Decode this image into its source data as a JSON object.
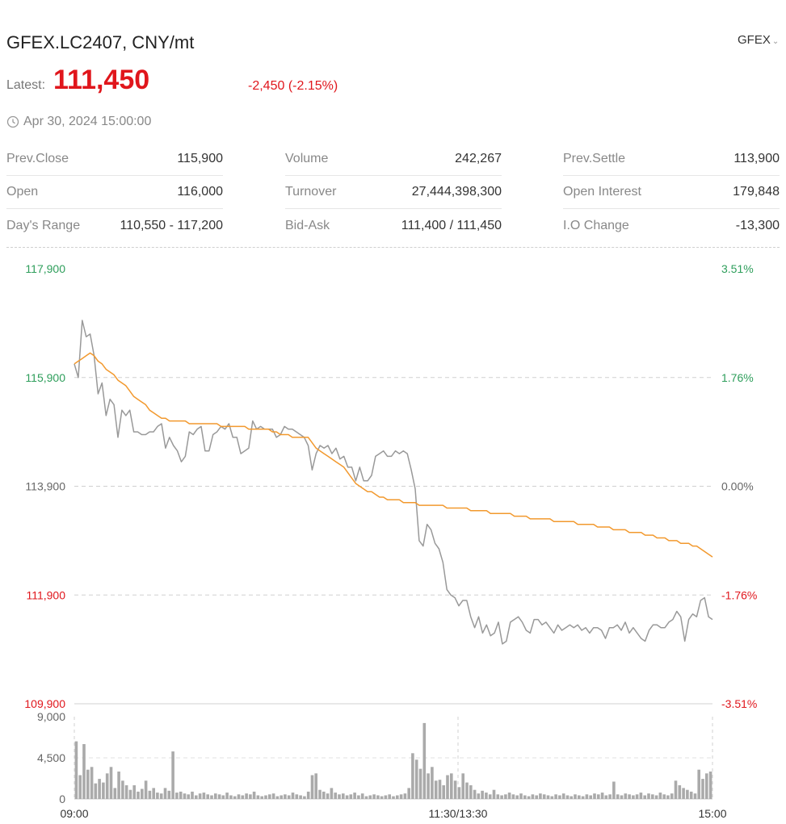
{
  "header": {
    "title": "GFEX.LC2407, CNY/mt",
    "exchange": "GFEX",
    "latest_label": "Latest:",
    "latest_value": "111,450",
    "change": "-2,450 (-2.15%)",
    "timestamp": "Apr 30, 2024 15:00:00"
  },
  "stats": [
    [
      {
        "label": "Prev.Close",
        "value": "115,900"
      },
      {
        "label": "Open",
        "value": "116,000"
      },
      {
        "label": "Day's Range",
        "value": "110,550 - 117,200"
      }
    ],
    [
      {
        "label": "Volume",
        "value": "242,267"
      },
      {
        "label": "Turnover",
        "value": "27,444,398,300"
      },
      {
        "label": "Bid-Ask",
        "value": "111,400 / 111,450"
      }
    ],
    [
      {
        "label": "Prev.Settle",
        "value": "113,900"
      },
      {
        "label": "Open Interest",
        "value": "179,848"
      },
      {
        "label": "I.O Change",
        "value": "-13,300"
      }
    ]
  ],
  "colors": {
    "up": "#2e9e5b",
    "down": "#e0161c",
    "price_line": "#999999",
    "avg_line": "#f2992e",
    "volume_bar": "#aaaaaa"
  },
  "chart_data": {
    "type": "line",
    "price_axis": {
      "ylim": [
        109900,
        117900
      ],
      "ticks": [
        "117,900",
        "115,900",
        "113,900",
        "111,900",
        "109,900"
      ],
      "tick_values": [
        117900,
        115900,
        113900,
        111900,
        109900
      ]
    },
    "percent_axis": {
      "ticks": [
        "3.51%",
        "1.76%",
        "0.00%",
        "-1.76%",
        "-3.51%"
      ]
    },
    "x_ticks": [
      "09:00",
      "11:30/13:30",
      "15:00"
    ],
    "series": [
      {
        "values": [
          116150,
          115900,
          116950,
          116650,
          116700,
          116300,
          115600,
          115800,
          115200,
          115500,
          115400,
          114800,
          115300,
          115200,
          115300,
          114900,
          114900,
          114850,
          114850,
          114900,
          114900,
          115000,
          115050,
          114600,
          114800,
          114650,
          114550,
          114350,
          114450,
          114900,
          114850,
          114950,
          115000,
          114550,
          114550,
          114850,
          114900,
          115000,
          114950,
          115050,
          114800,
          114800,
          114500,
          114550,
          114600,
          115100,
          114950,
          115000,
          114950,
          114950,
          114950,
          114800,
          114850,
          115000,
          114950,
          114950,
          114900,
          114850,
          114800,
          114650,
          114200,
          114500,
          114650,
          114600,
          114650,
          114500,
          114600,
          114400,
          114450,
          114250,
          114250,
          114000,
          114250,
          114000,
          114000,
          114100,
          114450,
          114500,
          114550,
          114450,
          114450,
          114550,
          114500,
          114550,
          114500,
          114200,
          113850,
          112900,
          112800,
          113200,
          113100,
          112850,
          112750,
          112500,
          112000,
          111900,
          111850,
          111700,
          111800,
          111800,
          111500,
          111300,
          111500,
          111200,
          111350,
          111150,
          111200,
          111400,
          111000,
          111050,
          111400,
          111450,
          111500,
          111400,
          111250,
          111200,
          111450,
          111450,
          111350,
          111400,
          111300,
          111200,
          111350,
          111250,
          111300,
          111350,
          111300,
          111350,
          111250,
          111300,
          111200,
          111300,
          111300,
          111250,
          111100,
          111300,
          111300,
          111350,
          111250,
          111400,
          111200,
          111300,
          111200,
          111100,
          111050,
          111250,
          111350,
          111350,
          111300,
          111300,
          111400,
          111450,
          111600,
          111500,
          111050,
          111450,
          111550,
          111500,
          111800,
          111850,
          111500,
          111450
        ]
      },
      {
        "values": [
          116150,
          116200,
          116250,
          116300,
          116350,
          116300,
          116200,
          116150,
          116050,
          116000,
          115950,
          115850,
          115800,
          115750,
          115650,
          115550,
          115500,
          115450,
          115400,
          115300,
          115250,
          115200,
          115150,
          115150,
          115100,
          115100,
          115100,
          115100,
          115100,
          115050,
          115050,
          115050,
          115050,
          115050,
          115050,
          115050,
          115050,
          115000,
          115000,
          115000,
          115000,
          115000,
          115000,
          115000,
          114950,
          114950,
          114950,
          114950,
          114950,
          114950,
          114900,
          114900,
          114850,
          114850,
          114850,
          114800,
          114800,
          114800,
          114800,
          114800,
          114700,
          114600,
          114550,
          114500,
          114450,
          114400,
          114350,
          114300,
          114250,
          114150,
          114050,
          113950,
          113900,
          113850,
          113800,
          113800,
          113750,
          113700,
          113700,
          113650,
          113650,
          113650,
          113650,
          113600,
          113600,
          113600,
          113600,
          113550,
          113550,
          113550,
          113550,
          113550,
          113550,
          113550,
          113500,
          113500,
          113500,
          113500,
          113500,
          113500,
          113450,
          113450,
          113450,
          113450,
          113450,
          113400,
          113400,
          113400,
          113400,
          113400,
          113400,
          113350,
          113350,
          113350,
          113350,
          113300,
          113300,
          113300,
          113300,
          113300,
          113300,
          113250,
          113250,
          113250,
          113250,
          113250,
          113250,
          113200,
          113200,
          113200,
          113200,
          113200,
          113150,
          113150,
          113150,
          113150,
          113100,
          113100,
          113100,
          113100,
          113050,
          113050,
          113050,
          113050,
          113000,
          113000,
          113000,
          112950,
          112950,
          112950,
          112900,
          112900,
          112900,
          112850,
          112850,
          112850,
          112800,
          112800,
          112750,
          112700,
          112650,
          112600
        ]
      }
    ],
    "volume": {
      "ylim": [
        0,
        9000
      ],
      "ticks": [
        "9,000",
        "4,500",
        "0"
      ],
      "tick_values": [
        9000,
        4500,
        0
      ],
      "values": [
        6300,
        2600,
        6000,
        3200,
        3500,
        1700,
        2200,
        1800,
        2800,
        3500,
        1200,
        3000,
        2000,
        1500,
        1000,
        1500,
        800,
        1100,
        2000,
        900,
        1200,
        700,
        600,
        1200,
        900,
        5200,
        700,
        800,
        600,
        500,
        800,
        400,
        600,
        700,
        500,
        400,
        600,
        500,
        400,
        700,
        400,
        300,
        500,
        400,
        600,
        500,
        800,
        400,
        300,
        400,
        500,
        600,
        300,
        400,
        500,
        400,
        700,
        500,
        400,
        300,
        800,
        2600,
        2800,
        1000,
        800,
        600,
        1200,
        700,
        500,
        600,
        400,
        500,
        700,
        400,
        600,
        300,
        400,
        500,
        400,
        300,
        400,
        500,
        300,
        400,
        500,
        600,
        1200,
        5000,
        4300,
        3300,
        8300,
        2800,
        3500,
        2000,
        2100,
        1500,
        2600,
        2800,
        2000,
        1300,
        2800,
        1800,
        1500,
        1000,
        600,
        900,
        700,
        500,
        1000,
        500,
        400,
        500,
        700,
        500,
        400,
        600,
        400,
        300,
        500,
        400,
        600,
        500,
        400,
        300,
        500,
        400,
        600,
        400,
        300,
        500,
        400,
        300,
        500,
        400,
        600,
        500,
        700,
        400,
        500,
        1900,
        500,
        400,
        600,
        500,
        400,
        500,
        700,
        400,
        600,
        500,
        400,
        700,
        500,
        400,
        600,
        2000,
        1500,
        1200,
        1000,
        800,
        600,
        3200,
        2200,
        2800,
        3000
      ]
    }
  }
}
